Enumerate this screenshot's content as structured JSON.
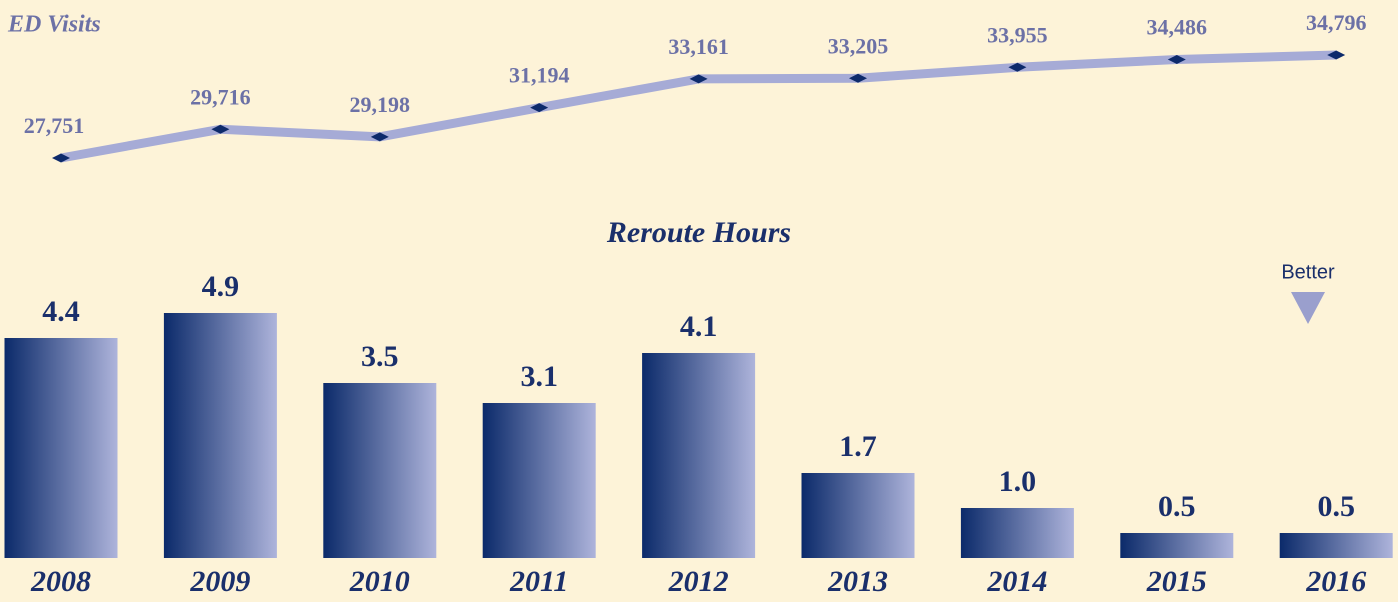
{
  "chart_data": [
    {
      "type": "line",
      "title": "ED Visits",
      "values": [
        27751,
        29716,
        29198,
        31194,
        33161,
        33205,
        33955,
        34486,
        34796
      ],
      "value_labels": [
        "27,751",
        "29,716",
        "29,198",
        "31,194",
        "33,161",
        "33,205",
        "33,955",
        "34,486",
        "34,796"
      ],
      "color": "#a6abd6",
      "marker_color": "#0d2a6b"
    },
    {
      "type": "bar",
      "title": "Reroute Hours",
      "categories": [
        "2008",
        "2009",
        "2010",
        "2011",
        "2012",
        "2013",
        "2014",
        "2015",
        "2016"
      ],
      "values": [
        4.4,
        4.9,
        3.5,
        3.1,
        4.1,
        1.7,
        1.0,
        0.5,
        0.5
      ],
      "value_labels": [
        "4.4",
        "4.9",
        "3.5",
        "3.1",
        "4.1",
        "1.7",
        "1.0",
        "0.5",
        "0.5"
      ],
      "gradient": [
        "#0b2a6a",
        "#aeb4db"
      ],
      "annotation": "Better"
    }
  ]
}
